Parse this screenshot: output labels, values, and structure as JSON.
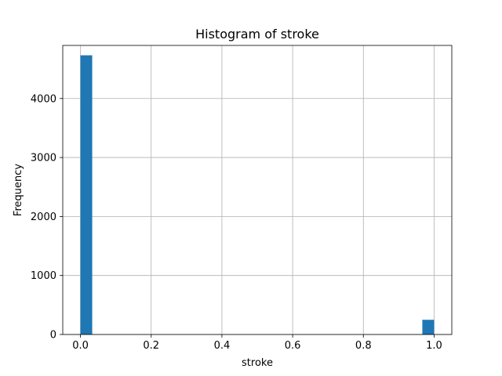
{
  "chart_data": {
    "type": "bar",
    "title": "Histogram of stroke",
    "xlabel": "stroke",
    "ylabel": "Frequency",
    "xlim": [
      -0.05,
      1.05
    ],
    "ylim": [
      0,
      4900
    ],
    "xticks": [
      {
        "value": 0.0,
        "label": "0.0"
      },
      {
        "value": 0.2,
        "label": "0.2"
      },
      {
        "value": 0.4,
        "label": "0.4"
      },
      {
        "value": 0.6,
        "label": "0.6"
      },
      {
        "value": 0.8,
        "label": "0.8"
      },
      {
        "value": 1.0,
        "label": "1.0"
      }
    ],
    "yticks": [
      {
        "value": 0,
        "label": "0"
      },
      {
        "value": 1000,
        "label": "1000"
      },
      {
        "value": 2000,
        "label": "2000"
      },
      {
        "value": 3000,
        "label": "3000"
      },
      {
        "value": 4000,
        "label": "4000"
      }
    ],
    "grid": true,
    "bar_color": "#1f77b4",
    "bins": [
      {
        "x0": 0.0,
        "x1": 0.0333,
        "count": 4733
      },
      {
        "x0": 0.9667,
        "x1": 1.0,
        "count": 249
      }
    ]
  }
}
